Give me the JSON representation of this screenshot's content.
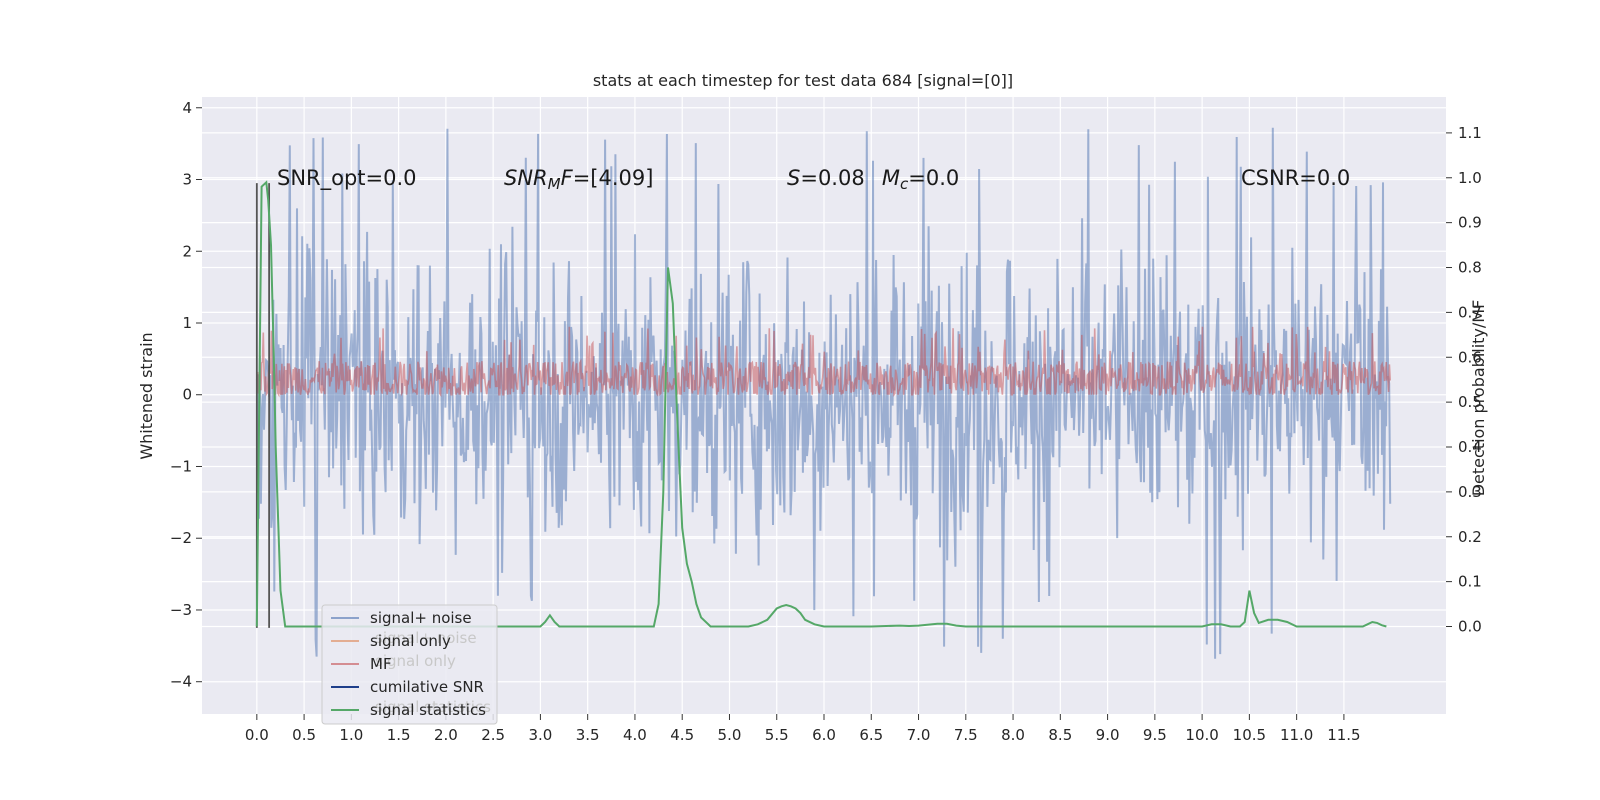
{
  "chart_data": {
    "type": "line",
    "title": "stats at each timestep for test data 684 [signal=[0]]",
    "xlabel": "",
    "ylabel_left": "Whitened strain",
    "ylabel_right": "Detection probability/MF",
    "xlim": [
      -0.58,
      12.58
    ],
    "ylim_left": [
      -4.45,
      4.15
    ],
    "ylim_right": [
      -0.195,
      1.18
    ],
    "x_ticks": [
      "0.0",
      "0.5",
      "1.0",
      "1.5",
      "2.0",
      "2.5",
      "3.0",
      "3.5",
      "4.0",
      "4.5",
      "5.0",
      "5.5",
      "6.0",
      "6.5",
      "7.0",
      "7.5",
      "8.0",
      "8.5",
      "9.0",
      "9.5",
      "10.0",
      "10.5",
      "11.0",
      "11.5"
    ],
    "x_tick_values": [
      0.0,
      0.5,
      1.0,
      1.5,
      2.0,
      2.5,
      3.0,
      3.5,
      4.0,
      4.5,
      5.0,
      5.5,
      6.0,
      6.5,
      7.0,
      7.5,
      8.0,
      8.5,
      9.0,
      9.5,
      10.0,
      10.5,
      11.0,
      11.5
    ],
    "y_ticks_left": [
      -4,
      -3,
      -2,
      -1,
      0,
      1,
      2,
      3,
      4
    ],
    "y_ticks_right": [
      "0.0",
      "0.1",
      "0.2",
      "0.3",
      "0.4",
      "0.5",
      "0.6",
      "0.7",
      "0.8",
      "0.9",
      "1.0",
      "1.1"
    ],
    "y_tick_values_right": [
      0.0,
      0.1,
      0.2,
      0.3,
      0.4,
      0.5,
      0.6,
      0.7,
      0.8,
      0.9,
      1.0,
      1.1
    ],
    "grid": true,
    "legend_location": "lower-left",
    "legend": [
      {
        "label": "signal+ noise",
        "color": "#4c72b0"
      },
      {
        "label": "signal only",
        "color": "#dd8452"
      },
      {
        "label": "MF",
        "color": "#c44e52"
      },
      {
        "label": "cumilative SNR",
        "color": "#1f3f8a"
      },
      {
        "label": "signal statistics",
        "color": "#55a868"
      }
    ],
    "legend_ghost_text": [
      "signal+ noise",
      "signal only",
      "signal statistics"
    ],
    "annotations": [
      {
        "text": "SNR_opt=0.0"
      },
      {
        "text": "SNR_MF=[4.09]"
      },
      {
        "text": "S=0.08  M_c=0.0"
      },
      {
        "text": "CSNR=0.0"
      }
    ],
    "series": [
      {
        "name": "signal+ noise",
        "axis": "left",
        "x_range": [
          0.0,
          11.99
        ],
        "typical_range": [
          -2.7,
          2.9
        ],
        "max": 3.76,
        "min": -3.98,
        "color": "#4c72b0",
        "opacity": 0.5
      },
      {
        "name": "MF",
        "axis": "left",
        "x_range": [
          0.0,
          11.99
        ],
        "typical_range": [
          0.0,
          0.6
        ],
        "max": 0.96,
        "color": "#c44e52",
        "opacity": 0.5
      },
      {
        "name": "signal statistics",
        "axis": "right",
        "color": "#55a868",
        "x": [
          0.0,
          0.05,
          0.1,
          0.12,
          0.15,
          0.18,
          0.2,
          0.25,
          0.3,
          0.35,
          0.5,
          1.0,
          2.0,
          3.0,
          3.05,
          3.1,
          3.15,
          3.2,
          3.3,
          3.5,
          4.0,
          4.2,
          4.25,
          4.3,
          4.35,
          4.4,
          4.45,
          4.5,
          4.55,
          4.6,
          4.65,
          4.7,
          4.8,
          5.0,
          5.2,
          5.3,
          5.4,
          5.5,
          5.55,
          5.6,
          5.65,
          5.7,
          5.75,
          5.8,
          5.9,
          6.0,
          6.5,
          6.8,
          6.9,
          7.0,
          7.2,
          7.3,
          7.4,
          7.5,
          8.0,
          9.0,
          10.0,
          10.1,
          10.2,
          10.3,
          10.4,
          10.45,
          10.5,
          10.55,
          10.6,
          10.7,
          10.8,
          10.9,
          11.0,
          11.5,
          11.7,
          11.75,
          11.8,
          11.85,
          11.9,
          11.95
        ],
        "y": [
          0.0,
          0.98,
          0.99,
          0.95,
          0.85,
          0.6,
          0.4,
          0.08,
          0.0,
          0.0,
          0.0,
          0.0,
          0.0,
          0.0,
          0.01,
          0.025,
          0.01,
          0.0,
          0.0,
          0.0,
          0.0,
          0.0,
          0.05,
          0.3,
          0.8,
          0.72,
          0.45,
          0.22,
          0.14,
          0.1,
          0.05,
          0.02,
          0.0,
          0.0,
          0.0,
          0.005,
          0.015,
          0.04,
          0.045,
          0.048,
          0.045,
          0.04,
          0.03,
          0.015,
          0.005,
          0.0,
          0.0,
          0.002,
          0.001,
          0.002,
          0.006,
          0.006,
          0.002,
          0.0,
          0.0,
          0.0,
          0.0,
          0.005,
          0.005,
          0.0,
          0.0,
          0.01,
          0.08,
          0.03,
          0.008,
          0.015,
          0.015,
          0.01,
          0.0,
          0.0,
          0.0,
          0.005,
          0.01,
          0.008,
          0.003,
          0.0
        ]
      },
      {
        "name": "marker lines",
        "axis": "left",
        "x": [
          0.0,
          0.13
        ],
        "y_range": [
          -3.25,
          2.95
        ],
        "color": "#555555"
      }
    ]
  }
}
